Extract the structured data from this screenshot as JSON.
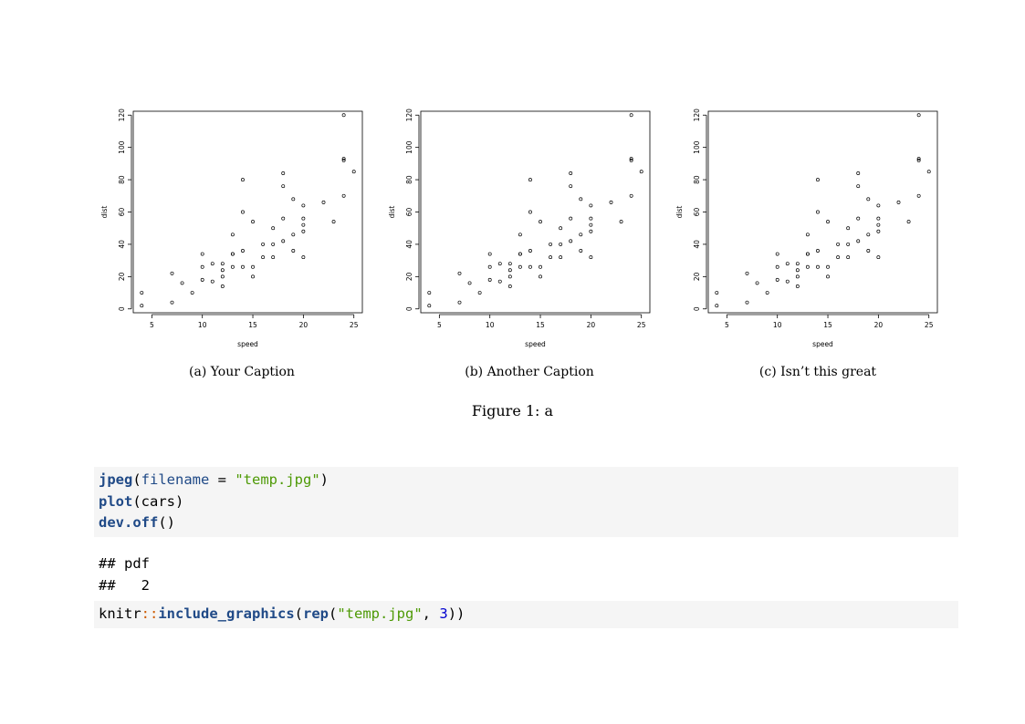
{
  "chart_data": [
    {
      "type": "scatter",
      "title": "",
      "xlabel": "speed",
      "ylabel": "dist",
      "xlim": [
        3.16,
        25.84
      ],
      "ylim": [
        -2.4,
        122.4
      ],
      "xticks": [
        5,
        10,
        15,
        20,
        25
      ],
      "yticks": [
        0,
        20,
        40,
        60,
        80,
        100,
        120
      ],
      "grid": false,
      "marker": "open-circle",
      "x": [
        4,
        4,
        7,
        7,
        8,
        9,
        10,
        10,
        10,
        11,
        11,
        12,
        12,
        12,
        12,
        13,
        13,
        13,
        13,
        14,
        14,
        14,
        14,
        15,
        15,
        15,
        16,
        16,
        17,
        17,
        17,
        18,
        18,
        18,
        18,
        19,
        19,
        19,
        20,
        20,
        20,
        20,
        20,
        22,
        23,
        24,
        24,
        24,
        24,
        25
      ],
      "y": [
        2,
        10,
        4,
        22,
        16,
        10,
        18,
        26,
        34,
        17,
        28,
        14,
        20,
        24,
        28,
        26,
        34,
        34,
        46,
        26,
        36,
        60,
        80,
        20,
        26,
        54,
        32,
        40,
        32,
        40,
        50,
        42,
        56,
        76,
        84,
        36,
        46,
        68,
        32,
        48,
        52,
        56,
        64,
        66,
        54,
        70,
        92,
        93,
        120,
        85
      ]
    },
    {
      "type": "scatter",
      "title": "",
      "xlabel": "speed",
      "ylabel": "dist",
      "xlim": [
        3.16,
        25.84
      ],
      "ylim": [
        -2.4,
        122.4
      ],
      "xticks": [
        5,
        10,
        15,
        20,
        25
      ],
      "yticks": [
        0,
        20,
        40,
        60,
        80,
        100,
        120
      ],
      "grid": false,
      "marker": "open-circle",
      "x": [
        4,
        4,
        7,
        7,
        8,
        9,
        10,
        10,
        10,
        11,
        11,
        12,
        12,
        12,
        12,
        13,
        13,
        13,
        13,
        14,
        14,
        14,
        14,
        15,
        15,
        15,
        16,
        16,
        17,
        17,
        17,
        18,
        18,
        18,
        18,
        19,
        19,
        19,
        20,
        20,
        20,
        20,
        20,
        22,
        23,
        24,
        24,
        24,
        24,
        25
      ],
      "y": [
        2,
        10,
        4,
        22,
        16,
        10,
        18,
        26,
        34,
        17,
        28,
        14,
        20,
        24,
        28,
        26,
        34,
        34,
        46,
        26,
        36,
        60,
        80,
        20,
        26,
        54,
        32,
        40,
        32,
        40,
        50,
        42,
        56,
        76,
        84,
        36,
        46,
        68,
        32,
        48,
        52,
        56,
        64,
        66,
        54,
        70,
        92,
        93,
        120,
        85
      ]
    },
    {
      "type": "scatter",
      "title": "",
      "xlabel": "speed",
      "ylabel": "dist",
      "xlim": [
        3.16,
        25.84
      ],
      "ylim": [
        -2.4,
        122.4
      ],
      "xticks": [
        5,
        10,
        15,
        20,
        25
      ],
      "yticks": [
        0,
        20,
        40,
        60,
        80,
        100,
        120
      ],
      "grid": false,
      "marker": "open-circle",
      "x": [
        4,
        4,
        7,
        7,
        8,
        9,
        10,
        10,
        10,
        11,
        11,
        12,
        12,
        12,
        12,
        13,
        13,
        13,
        13,
        14,
        14,
        14,
        14,
        15,
        15,
        15,
        16,
        16,
        17,
        17,
        17,
        18,
        18,
        18,
        18,
        19,
        19,
        19,
        20,
        20,
        20,
        20,
        20,
        22,
        23,
        24,
        24,
        24,
        24,
        25
      ],
      "y": [
        2,
        10,
        4,
        22,
        16,
        10,
        18,
        26,
        34,
        17,
        28,
        14,
        20,
        24,
        28,
        26,
        34,
        34,
        46,
        26,
        36,
        60,
        80,
        20,
        26,
        54,
        32,
        40,
        32,
        40,
        50,
        42,
        56,
        76,
        84,
        36,
        46,
        68,
        32,
        48,
        52,
        56,
        64,
        66,
        54,
        70,
        92,
        93,
        120,
        85
      ]
    }
  ],
  "subfigures": [
    {
      "caption": "(a) Your Caption"
    },
    {
      "caption": "(b) Another Caption"
    },
    {
      "caption": "(c) Isn’t this great"
    }
  ],
  "figure_caption": "Figure 1: a",
  "code_block_1": {
    "line1": {
      "fn": "jpeg",
      "open": "(",
      "arg": "filename",
      "eq": " = ",
      "str": "\"temp.jpg\"",
      "close": ")"
    },
    "line2": {
      "fn": "plot",
      "open": "(",
      "plain": "cars",
      "close": ")"
    },
    "line3": {
      "fn": "dev.off",
      "parens": "()"
    }
  },
  "output": {
    "line1": "## pdf",
    "line2": "##   2"
  },
  "code_block_2": {
    "pkg": "knitr",
    "sep": "::",
    "fn": "include_graphics",
    "open": "(",
    "fn2": "rep",
    "open2": "(",
    "str": "\"temp.jpg\"",
    "comma": ", ",
    "num": "3",
    "close": "))"
  }
}
